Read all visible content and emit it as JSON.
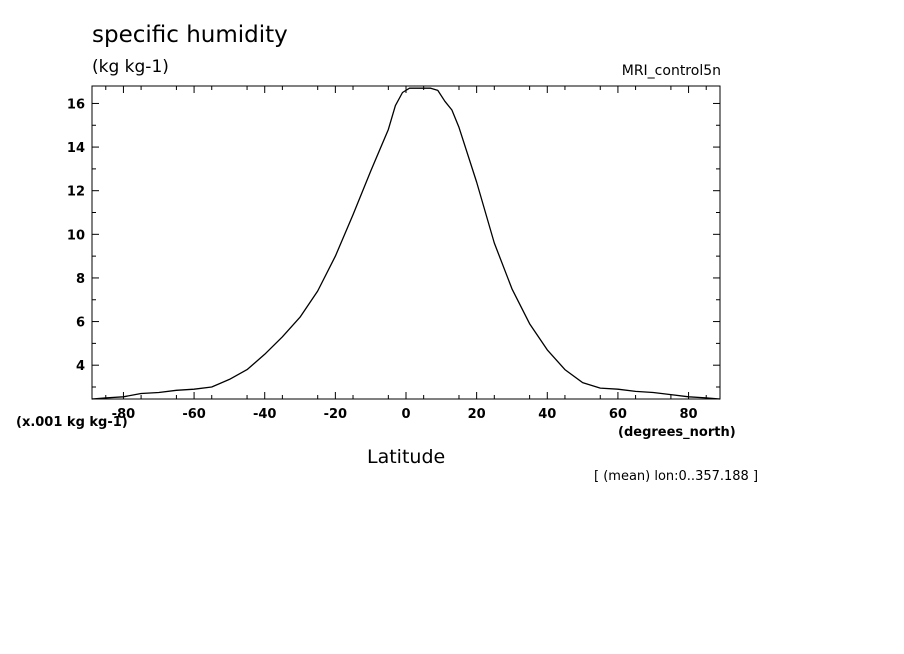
{
  "header": {
    "title": "specific humidity",
    "units": "(kg kg-1)",
    "dataset": "MRI_control5n"
  },
  "footer": {
    "scale_note": "(x.001 kg kg-1)",
    "x_units": "(degrees_north)",
    "x_label": "Latitude",
    "subset_note": "[ (mean) lon:0..357.188 ]"
  },
  "chart_data": {
    "type": "line",
    "xlabel": "Latitude",
    "ylabel": "(kg kg-1)",
    "xlim": [
      -88.9,
      88.9
    ],
    "ylim": [
      2.45,
      16.8
    ],
    "x_ticks": [
      -80,
      -60,
      -40,
      -20,
      0,
      20,
      40,
      60,
      80
    ],
    "x_tick_labels": [
      "-80",
      "-60",
      "-40",
      "-20",
      "0",
      "20",
      "40",
      "60",
      "80"
    ],
    "y_ticks": [
      4,
      6,
      8,
      10,
      12,
      14,
      16
    ],
    "y_tick_labels": [
      "4",
      "6",
      "8",
      "10",
      "12",
      "14",
      "16"
    ],
    "grid": false,
    "series": [
      {
        "values_scale": "x.001 kg kg-1",
        "x": [
          -88.9,
          -85,
          -80,
          -75,
          -70,
          -65,
          -60,
          -55,
          -50,
          -45,
          -40,
          -35,
          -30,
          -25,
          -20,
          -15,
          -10,
          -5,
          -3,
          -1,
          1,
          3,
          5,
          7,
          9,
          11,
          13,
          15,
          20,
          25,
          30,
          35,
          40,
          45,
          50,
          55,
          60,
          65,
          70,
          75,
          80,
          85,
          88.9
        ],
        "y": [
          2.45,
          2.5,
          2.55,
          2.7,
          2.75,
          2.85,
          2.9,
          3.0,
          3.35,
          3.8,
          4.5,
          5.3,
          6.2,
          7.4,
          9.0,
          10.9,
          12.9,
          14.8,
          15.9,
          16.5,
          16.7,
          16.7,
          16.7,
          16.7,
          16.6,
          16.1,
          15.7,
          14.9,
          12.4,
          9.6,
          7.5,
          5.9,
          4.7,
          3.8,
          3.2,
          2.95,
          2.9,
          2.8,
          2.75,
          2.65,
          2.55,
          2.5,
          2.45
        ]
      }
    ]
  }
}
